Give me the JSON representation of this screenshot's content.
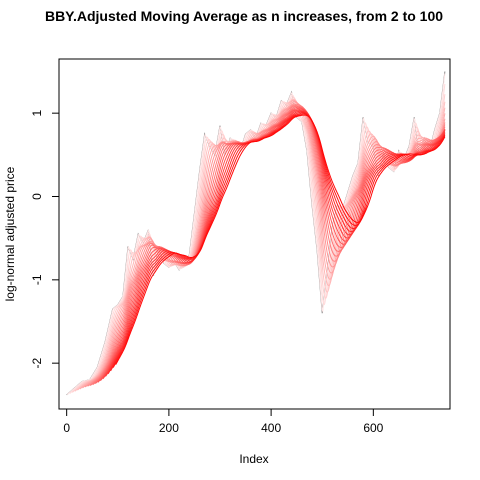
{
  "chart_data": {
    "type": "line",
    "title": "BBY.Adjusted Moving Average as n increases, from 2 to 100",
    "xlabel": "Index",
    "ylabel": "log-normal adjusted price",
    "xlim": [
      -15,
      750
    ],
    "ylim": [
      -2.55,
      1.65
    ],
    "x_ticks": [
      0,
      200,
      400,
      600
    ],
    "y_ticks": [
      -2,
      -1,
      0,
      1
    ],
    "grid": false,
    "legend": "none",
    "n_range": [
      2,
      100
    ],
    "n_step": 5,
    "colors": {
      "raw": "#888888",
      "ma_light": "#ffe6e6",
      "ma_dark": "#ff0000"
    },
    "series": [
      {
        "x": [
          0,
          15,
          30,
          45,
          60,
          75,
          90,
          100,
          110,
          120,
          130,
          140,
          150,
          160,
          170,
          180,
          190,
          200,
          210,
          220,
          230,
          240,
          250,
          260,
          270,
          280,
          290,
          300,
          310,
          320,
          330,
          340,
          350,
          360,
          370,
          380,
          390,
          400,
          410,
          420,
          430,
          440,
          450,
          460,
          470,
          480,
          490,
          500,
          510,
          520,
          530,
          540,
          550,
          560,
          570,
          580,
          590,
          600,
          610,
          620,
          630,
          640,
          650,
          660,
          670,
          680,
          690,
          700,
          710,
          720,
          730,
          740
        ],
        "y": [
          -2.38,
          -2.3,
          -2.22,
          -2.2,
          -2.05,
          -1.75,
          -1.35,
          -1.3,
          -1.2,
          -0.6,
          -0.75,
          -0.45,
          -0.55,
          -0.4,
          -0.95,
          -0.62,
          -0.8,
          -0.85,
          -0.78,
          -0.88,
          -0.8,
          -0.7,
          -0.2,
          0.3,
          0.75,
          0.6,
          0.5,
          0.85,
          0.5,
          0.7,
          0.65,
          0.55,
          0.75,
          0.8,
          0.7,
          0.88,
          0.85,
          1.0,
          0.95,
          1.15,
          1.1,
          1.25,
          0.95,
          0.9,
          0.55,
          -0.1,
          -0.65,
          -1.4,
          -0.9,
          -0.35,
          -0.1,
          -0.15,
          0.05,
          0.25,
          0.4,
          0.95,
          0.65,
          0.6,
          0.25,
          0.5,
          0.35,
          0.3,
          0.55,
          0.45,
          0.6,
          0.95,
          0.5,
          0.7,
          0.55,
          0.8,
          1.0,
          1.5
        ]
      }
    ]
  }
}
